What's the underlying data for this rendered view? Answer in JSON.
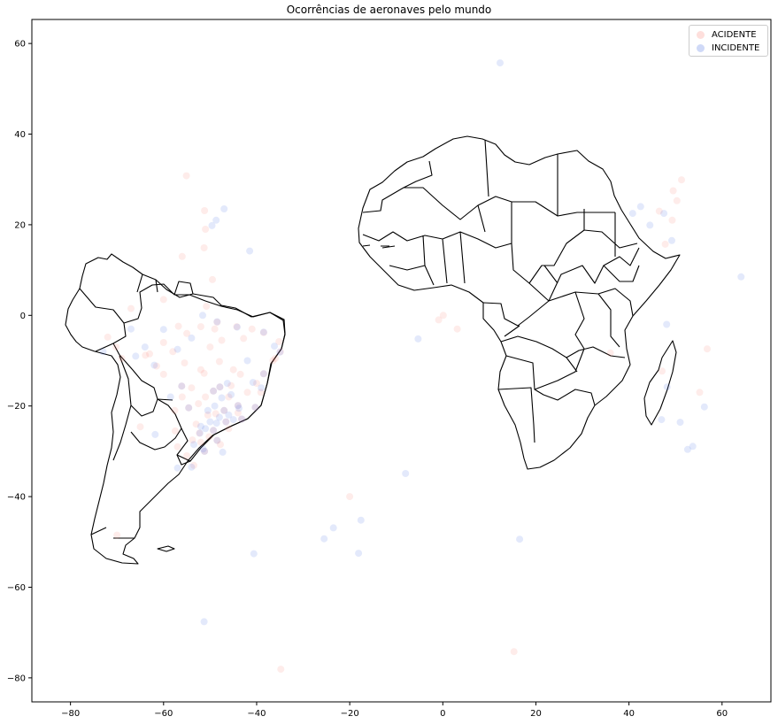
{
  "chart_data": {
    "type": "scatter",
    "title": "Ocorrências de aeronaves pelo mundo",
    "xlabel": "",
    "ylabel": "",
    "xlim": [
      -88.3,
      70.5
    ],
    "ylim": [
      -85.3,
      65.3
    ],
    "xticks": [
      -80,
      -60,
      -40,
      -20,
      0,
      20,
      40,
      60
    ],
    "yticks": [
      60,
      40,
      20,
      0,
      -20,
      -40,
      -60,
      -80
    ],
    "xtick_labels": [
      "−80",
      "−60",
      "−40",
      "−20",
      "0",
      "20",
      "40",
      "60"
    ],
    "ytick_labels": [
      "60",
      "40",
      "20",
      "0",
      "−20",
      "−40",
      "−60",
      "−80"
    ],
    "grid": false,
    "legend_position": "upper-right",
    "background_map": "South America and Africa country outlines",
    "series": [
      {
        "name": "ACIDENTE",
        "color": "#fa8072",
        "alpha": 0.15,
        "points": [
          [
            -55.1,
            30.8
          ],
          [
            -51.2,
            23.1
          ],
          [
            -51.0,
            19.0
          ],
          [
            -51.3,
            14.9
          ],
          [
            -56.0,
            13.0
          ],
          [
            -49.5,
            7.9
          ],
          [
            -50.8,
            2.0
          ],
          [
            -60.0,
            3.5
          ],
          [
            -67.0,
            1.5
          ],
          [
            -72.0,
            -4.8
          ],
          [
            -70.2,
            -7.0
          ],
          [
            -69.0,
            -9.5
          ],
          [
            -63.0,
            -8.5
          ],
          [
            -60.0,
            -6.0
          ],
          [
            -55.0,
            -4.0
          ],
          [
            -52.0,
            -2.5
          ],
          [
            -48.5,
            -1.5
          ],
          [
            -44.3,
            -2.5
          ],
          [
            -41.0,
            -3.0
          ],
          [
            -38.5,
            -3.8
          ],
          [
            -35.2,
            -5.8
          ],
          [
            -34.9,
            -8.0
          ],
          [
            -36.5,
            -10.0
          ],
          [
            -38.5,
            -12.9
          ],
          [
            -40.0,
            -15.0
          ],
          [
            -40.3,
            -20.3
          ],
          [
            -43.2,
            -22.9
          ],
          [
            -46.6,
            -23.5
          ],
          [
            -47.9,
            -15.8
          ],
          [
            -49.3,
            -16.7
          ],
          [
            -51.0,
            -18.0
          ],
          [
            -54.6,
            -20.4
          ],
          [
            -56.1,
            -15.6
          ],
          [
            -56.0,
            -18.0
          ],
          [
            -52.0,
            -12.0
          ],
          [
            -48.0,
            -10.2
          ],
          [
            -45.0,
            -12.0
          ],
          [
            -42.8,
            -5.1
          ],
          [
            -50.0,
            -7.0
          ],
          [
            -57.5,
            -25.5
          ],
          [
            -49.3,
            -25.4
          ],
          [
            -51.2,
            -30.0
          ],
          [
            -53.5,
            -33.1
          ],
          [
            -48.5,
            -27.6
          ],
          [
            -52.0,
            -28.0
          ],
          [
            -57.0,
            -29.0
          ],
          [
            -55.0,
            -31.0
          ],
          [
            -47.0,
            -21.0
          ],
          [
            -44.0,
            -19.9
          ],
          [
            -42.0,
            -17.0
          ],
          [
            -46.0,
            -18.0
          ],
          [
            -50.5,
            -22.0
          ],
          [
            -53.0,
            -24.0
          ],
          [
            -60.0,
            -13.0
          ],
          [
            -63.9,
            -8.8
          ],
          [
            -58.0,
            -8.0
          ],
          [
            -55.5,
            -10.5
          ],
          [
            -47.5,
            -5.5
          ],
          [
            -65.0,
            -24.6
          ],
          [
            -70.0,
            -48.5
          ],
          [
            -0.9,
            -1.0
          ],
          [
            0.1,
            0.0
          ],
          [
            3.1,
            -3.0
          ],
          [
            -20.0,
            -40.0
          ],
          [
            15.3,
            -74.2
          ],
          [
            -34.8,
            -78.1
          ],
          [
            -46.0,
            -25.0
          ],
          [
            -44.0,
            -21.5
          ],
          [
            -48.8,
            -21.7
          ],
          [
            -52.5,
            -19.5
          ],
          [
            -45.5,
            -15.5
          ],
          [
            -54.0,
            -16.0
          ],
          [
            -57.6,
            -21.0
          ],
          [
            -43.5,
            -13.0
          ],
          [
            -39.1,
            -17.0
          ],
          [
            -36.0,
            -9.5
          ],
          [
            -49.0,
            -3.0
          ],
          [
            -56.8,
            -2.4
          ],
          [
            -51.3,
            -12.8
          ],
          [
            -61.5,
            -11.2
          ],
          [
            -47.8,
            -28.5
          ],
          [
            -50.2,
            -26.8
          ],
          [
            -53.8,
            -27.5
          ],
          [
            -52.3,
            -26.0
          ],
          [
            49.5,
            27.5
          ],
          [
            50.3,
            25.3
          ],
          [
            49.3,
            21.0
          ],
          [
            51.3,
            29.9
          ],
          [
            55.2,
            -17.0
          ],
          [
            56.8,
            -7.4
          ],
          [
            47.1,
            -12.3
          ],
          [
            36.0,
            -8.3
          ],
          [
            47.8,
            15.7
          ],
          [
            46.5,
            23.0
          ]
        ]
      },
      {
        "name": "INCIDENTE",
        "color": "#4169e1",
        "alpha": 0.15,
        "points": [
          [
            12.3,
            55.7
          ],
          [
            -47.0,
            23.5
          ],
          [
            -49.6,
            19.8
          ],
          [
            -48.7,
            21.0
          ],
          [
            -41.5,
            14.2
          ],
          [
            -51.6,
            0.0
          ],
          [
            -67.0,
            -3.0
          ],
          [
            -60.0,
            -3.1
          ],
          [
            -64.0,
            -7.0
          ],
          [
            -73.0,
            -8.0
          ],
          [
            -66.0,
            -9.0
          ],
          [
            -62.0,
            -11.0
          ],
          [
            -57.0,
            -7.5
          ],
          [
            -54.0,
            -5.0
          ],
          [
            -48.5,
            -1.4
          ],
          [
            -44.2,
            -2.6
          ],
          [
            -38.5,
            -3.7
          ],
          [
            -35.0,
            -8.1
          ],
          [
            -38.5,
            -12.9
          ],
          [
            -40.3,
            -20.3
          ],
          [
            -43.2,
            -22.9
          ],
          [
            -46.6,
            -23.5
          ],
          [
            -47.9,
            -15.8
          ],
          [
            -49.3,
            -16.7
          ],
          [
            -51.2,
            -30.0
          ],
          [
            -49.3,
            -25.4
          ],
          [
            -48.5,
            -27.6
          ],
          [
            -54.6,
            -20.4
          ],
          [
            -56.1,
            -15.6
          ],
          [
            -44.0,
            -19.9
          ],
          [
            -47.0,
            -21.0
          ],
          [
            -46.0,
            -22.0
          ],
          [
            -45.0,
            -23.0
          ],
          [
            -48.0,
            -22.5
          ],
          [
            -50.0,
            -23.5
          ],
          [
            -52.0,
            -24.5
          ],
          [
            -52.2,
            -26.0
          ],
          [
            -53.5,
            -28.5
          ],
          [
            -51.5,
            -29.5
          ],
          [
            -40.8,
            -14.8
          ],
          [
            -42.0,
            -10.0
          ],
          [
            -36.2,
            -6.8
          ],
          [
            -39.0,
            -16.0
          ],
          [
            -58.5,
            -18.0
          ],
          [
            -61.8,
            -26.3
          ],
          [
            -54.0,
            -33.5
          ],
          [
            -47.3,
            -30.2
          ],
          [
            -57.0,
            -33.7
          ],
          [
            -8.0,
            -34.9
          ],
          [
            -25.5,
            -49.3
          ],
          [
            -23.5,
            -46.9
          ],
          [
            -18.1,
            -52.5
          ],
          [
            -17.6,
            -45.2
          ],
          [
            -40.6,
            -52.6
          ],
          [
            -51.3,
            -67.6
          ],
          [
            16.5,
            -49.4
          ],
          [
            -5.3,
            -5.2
          ],
          [
            40.8,
            22.5
          ],
          [
            42.5,
            24.0
          ],
          [
            44.5,
            19.9
          ],
          [
            47.5,
            22.5
          ],
          [
            49.2,
            16.5
          ],
          [
            48.2,
            -15.8
          ],
          [
            47.0,
            -23.0
          ],
          [
            51.0,
            -23.6
          ],
          [
            52.6,
            -29.6
          ],
          [
            53.7,
            -28.9
          ],
          [
            56.2,
            -20.2
          ],
          [
            48.1,
            -2.0
          ],
          [
            64.1,
            8.5
          ],
          [
            -45.5,
            -17.5
          ],
          [
            -50.5,
            -21.0
          ],
          [
            -43.8,
            -20.5
          ],
          [
            -49.0,
            -20.0
          ],
          [
            -51.0,
            -25.0
          ],
          [
            -46.3,
            -15.0
          ],
          [
            -47.5,
            -18.2
          ],
          [
            -48.6,
            -23.8
          ]
        ]
      }
    ]
  }
}
